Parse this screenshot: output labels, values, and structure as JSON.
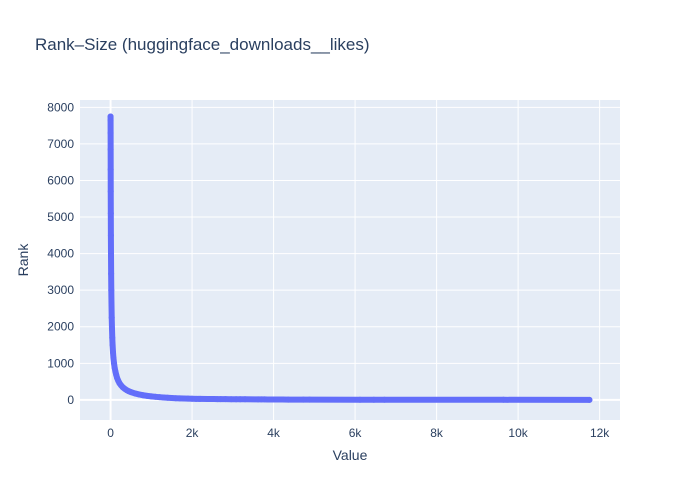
{
  "chart_data": {
    "type": "scatter",
    "title": "Rank–Size (huggingface_downloads__likes)",
    "xlabel": "Value",
    "ylabel": "Rank",
    "xlim": [
      -750,
      12500
    ],
    "ylim": [
      -550,
      8200
    ],
    "x_ticks": [
      {
        "value": 0,
        "label": "0"
      },
      {
        "value": 2000,
        "label": "2k"
      },
      {
        "value": 4000,
        "label": "4k"
      },
      {
        "value": 6000,
        "label": "6k"
      },
      {
        "value": 8000,
        "label": "8k"
      },
      {
        "value": 10000,
        "label": "10k"
      },
      {
        "value": 12000,
        "label": "12k"
      }
    ],
    "y_ticks": [
      {
        "value": 0,
        "label": "0"
      },
      {
        "value": 1000,
        "label": "1000"
      },
      {
        "value": 2000,
        "label": "2000"
      },
      {
        "value": 3000,
        "label": "3000"
      },
      {
        "value": 4000,
        "label": "4000"
      },
      {
        "value": 5000,
        "label": "5000"
      },
      {
        "value": 6000,
        "label": "6000"
      },
      {
        "value": 7000,
        "label": "7000"
      },
      {
        "value": 8000,
        "label": "8000"
      }
    ],
    "grid": true,
    "legend": "none",
    "colors": {
      "marker": "#636efa",
      "plot_bg": "#e5ecf6",
      "grid": "#ffffff",
      "text": "#2a3f5f"
    },
    "series": [
      {
        "points": [
          [
            11750,
            1
          ],
          [
            9640,
            2
          ],
          [
            6720,
            3
          ],
          [
            6460,
            4
          ],
          [
            6120,
            5
          ],
          [
            4880,
            6
          ],
          [
            4730,
            7
          ],
          [
            4360,
            8
          ],
          [
            4220,
            9
          ],
          [
            3950,
            10
          ],
          [
            3900,
            11
          ],
          [
            3850,
            12
          ],
          [
            3780,
            13
          ],
          [
            3700,
            14
          ],
          [
            3620,
            15
          ],
          [
            3300,
            16
          ],
          [
            3180,
            17
          ],
          [
            3080,
            18
          ],
          [
            2960,
            19
          ],
          [
            2820,
            20
          ],
          [
            2700,
            21
          ],
          [
            2620,
            22
          ],
          [
            2540,
            23
          ],
          [
            2460,
            24
          ],
          [
            2380,
            25
          ],
          [
            2200,
            26
          ],
          [
            2170,
            27
          ],
          [
            2100,
            29
          ],
          [
            2000,
            31
          ],
          [
            1900,
            34
          ],
          [
            1800,
            37
          ],
          [
            1700,
            41
          ],
          [
            1600,
            46
          ],
          [
            1500,
            52
          ],
          [
            1400,
            58
          ],
          [
            1300,
            65
          ],
          [
            1200,
            74
          ],
          [
            1100,
            84
          ],
          [
            1000,
            96
          ],
          [
            900,
            110
          ],
          [
            800,
            127
          ],
          [
            700,
            148
          ],
          [
            600,
            176
          ],
          [
            500,
            212
          ],
          [
            450,
            235
          ],
          [
            400,
            264
          ],
          [
            350,
            300
          ],
          [
            300,
            345
          ],
          [
            260,
            395
          ],
          [
            220,
            455
          ],
          [
            190,
            520
          ],
          [
            160,
            600
          ],
          [
            140,
            680
          ],
          [
            120,
            770
          ],
          [
            100,
            880
          ],
          [
            85,
            1000
          ],
          [
            70,
            1150
          ],
          [
            60,
            1300
          ],
          [
            50,
            1500
          ],
          [
            42,
            1700
          ],
          [
            35,
            1950
          ],
          [
            28,
            2250
          ],
          [
            23,
            2600
          ],
          [
            18,
            3000
          ],
          [
            14,
            3450
          ],
          [
            11,
            3950
          ],
          [
            8,
            4500
          ],
          [
            6,
            5100
          ],
          [
            4,
            5700
          ],
          [
            3,
            6300
          ],
          [
            2,
            6850
          ],
          [
            1,
            7300
          ],
          [
            0,
            7650
          ],
          [
            0,
            7750
          ]
        ]
      }
    ]
  }
}
